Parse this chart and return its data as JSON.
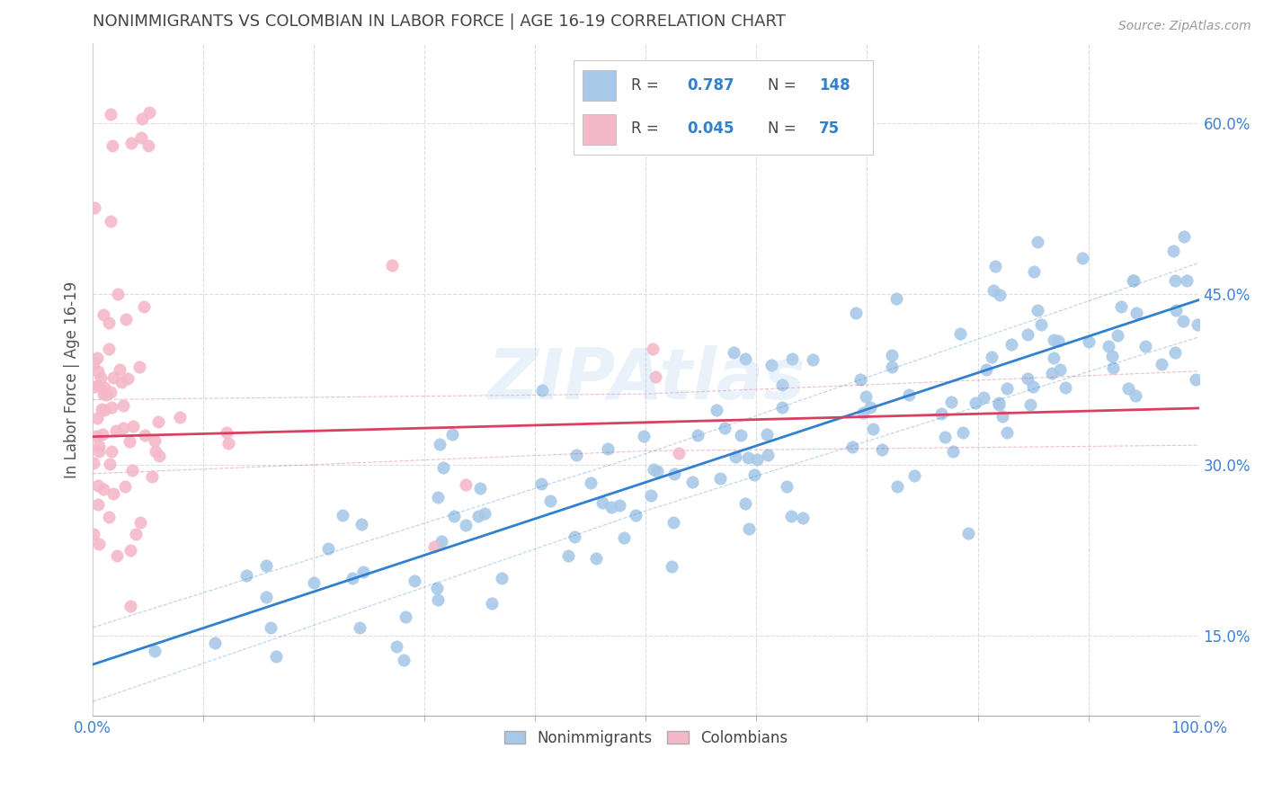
{
  "title": "NONIMMIGRANTS VS COLOMBIAN IN LABOR FORCE | AGE 16-19 CORRELATION CHART",
  "source": "Source: ZipAtlas.com",
  "ylabel": "In Labor Force | Age 16-19",
  "xlim": [
    0.0,
    1.0
  ],
  "ylim": [
    0.08,
    0.67
  ],
  "x_ticks": [
    0.0,
    1.0
  ],
  "x_tick_labels": [
    "0.0%",
    "100.0%"
  ],
  "x_minor_ticks": [
    0.1,
    0.2,
    0.3,
    0.4,
    0.5,
    0.6,
    0.7,
    0.8,
    0.9
  ],
  "y_ticks": [
    0.15,
    0.3,
    0.45,
    0.6
  ],
  "y_tick_labels": [
    "15.0%",
    "30.0%",
    "45.0%",
    "60.0%"
  ],
  "blue_R": 0.787,
  "blue_N": 148,
  "pink_R": 0.045,
  "pink_N": 75,
  "blue_color": "#A8C8E8",
  "pink_color": "#F4B8C8",
  "blue_line_color": "#3080D0",
  "pink_line_color": "#D84060",
  "grid_color": "#DDDDDD",
  "background_color": "#FFFFFF",
  "title_color": "#444444",
  "axis_label_color": "#555555",
  "tick_color": "#4080D0",
  "legend_label_nonimmigrants": "Nonimmigrants",
  "legend_label_colombians": "Colombians",
  "watermark": "ZIPAtlas",
  "blue_slope": 0.32,
  "blue_intercept": 0.125,
  "pink_slope": 0.025,
  "pink_intercept": 0.325
}
